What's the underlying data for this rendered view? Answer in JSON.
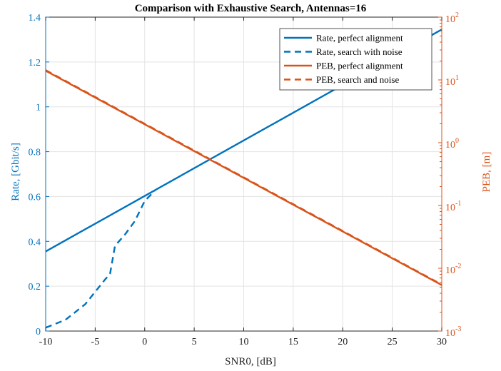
{
  "chart_data": {
    "type": "line",
    "title": "Comparison with Exhaustive Search, Antennas=16",
    "xlabel": "SNR0, [dB]",
    "ylabel_left": "Rate, [Gbit/s]",
    "ylabel_right": "PEB, [m]",
    "xlim": [
      -10,
      30
    ],
    "ylim_left": [
      0,
      1.4
    ],
    "ylim_right": [
      0.001,
      100
    ],
    "yscale_right": "log",
    "grid": true,
    "legend_position": "top-right",
    "x_ticks": [
      "-10",
      "-5",
      "0",
      "5",
      "10",
      "15",
      "20",
      "25",
      "30"
    ],
    "y_left_ticks": [
      "0",
      "0.2",
      "0.4",
      "0.6",
      "0.8",
      "1",
      "1.2",
      "1.4"
    ],
    "y_right_ticks": [
      {
        "base": "10",
        "exp": "-3"
      },
      {
        "base": "10",
        "exp": "-2"
      },
      {
        "base": "10",
        "exp": "-1"
      },
      {
        "base": "10",
        "exp": "0"
      },
      {
        "base": "10",
        "exp": "1"
      },
      {
        "base": "10",
        "exp": "2"
      }
    ],
    "colors": {
      "rate": "#0072BD",
      "peb": "#D95319"
    },
    "series": [
      {
        "name": "Rate, perfect alignment",
        "axis": "left",
        "style": "solid",
        "color": "#0072BD",
        "x": [
          -10,
          30
        ],
        "y": [
          0.355,
          1.345
        ]
      },
      {
        "name": "Rate, search with noise",
        "axis": "left",
        "style": "dashed",
        "color": "#0072BD",
        "x": [
          -10,
          -8,
          -6,
          -5,
          -4,
          -3.5,
          -3,
          -2,
          -1,
          0,
          1
        ],
        "y": [
          0.015,
          0.05,
          0.12,
          0.175,
          0.23,
          0.255,
          0.38,
          0.43,
          0.49,
          0.58,
          0.625
        ]
      },
      {
        "name": "PEB, perfect alignment",
        "axis": "right",
        "style": "solid",
        "color": "#D95319",
        "x": [
          -10,
          30
        ],
        "y": [
          14,
          0.0054
        ]
      },
      {
        "name": "PEB, search and noise",
        "axis": "right",
        "style": "dashed",
        "color": "#D95319",
        "x": [
          -10,
          30
        ],
        "y": [
          14.3,
          0.0055
        ]
      }
    ]
  }
}
